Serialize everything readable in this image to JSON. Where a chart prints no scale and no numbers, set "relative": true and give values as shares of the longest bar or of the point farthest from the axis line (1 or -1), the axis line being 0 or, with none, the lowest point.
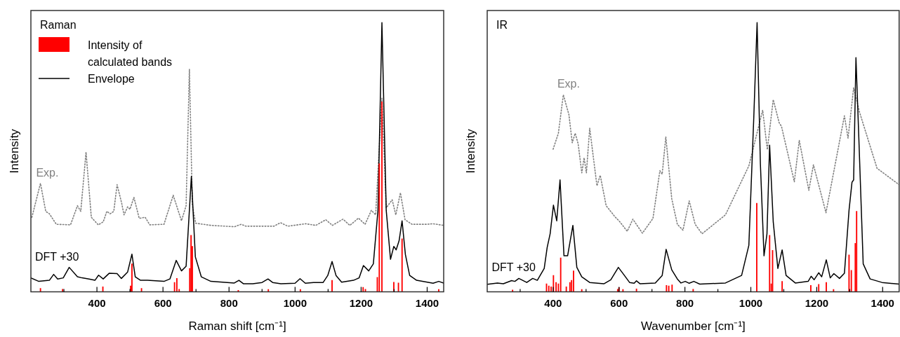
{
  "chart_data": [
    {
      "type": "line",
      "title": "Raman",
      "xlabel": "Raman shift [cm⁻¹]",
      "ylabel": "Intensity",
      "relative": true,
      "tick_labels": "x",
      "legend": "top left",
      "marker": "none",
      "xlim": [
        200,
        1450
      ],
      "xticks": [
        {
          "value": 300,
          "label": null
        },
        400,
        {
          "value": 500,
          "label": null
        },
        600,
        {
          "value": 700,
          "label": null
        },
        800,
        {
          "value": 900,
          "label": null
        },
        1000,
        {
          "value": 1100,
          "label": null
        },
        1200,
        {
          "value": 1300,
          "label": null
        },
        1400
      ],
      "annotations": [
        "Exp.",
        "DFT +30"
      ],
      "series": [
        {
          "type": "bar",
          "name": "Intensity of calculated bands",
          "color": "#ff0000",
          "x": [
            229,
            296,
            418,
            502,
            506,
            535,
            635,
            642,
            649,
            681,
            685,
            689,
            828,
            919,
            1016,
            1112,
            1206,
            1213,
            1249,
            1255,
            1263,
            1299,
            1313,
            1324,
            1435
          ],
          "values": [
            0.013,
            0.01,
            0.019,
            0.022,
            0.104,
            0.013,
            0.035,
            0.05,
            0.01,
            0.087,
            0.21,
            0.169,
            0.006,
            0.009,
            0.009,
            0.043,
            0.017,
            0.01,
            0.054,
            0.476,
            0.706,
            0.036,
            0.033,
            0.197,
            0.009
          ]
        },
        {
          "name": "Envelope",
          "color": "#000000",
          "line_style": "solid",
          "x": [
            200,
            224,
            256,
            269,
            281,
            298,
            316,
            341,
            355,
            376,
            394,
            405,
            419,
            437,
            461,
            474,
            493,
            506,
            516,
            532,
            553,
            603,
            621,
            640,
            656,
            670,
            686,
            698,
            716,
            745,
            816,
            830,
            844,
            872,
            900,
            918,
            932,
            957,
            1000,
            1015,
            1031,
            1056,
            1085,
            1099,
            1112,
            1124,
            1141,
            1177,
            1194,
            1207,
            1223,
            1237,
            1251,
            1263,
            1276,
            1289,
            1299,
            1306,
            1315,
            1324,
            1334,
            1347,
            1368,
            1418,
            1435,
            1450
          ],
          "values": [
            0.052,
            0.039,
            0.043,
            0.065,
            0.048,
            0.052,
            0.091,
            0.056,
            0.052,
            0.048,
            0.043,
            0.062,
            0.048,
            0.069,
            0.068,
            0.05,
            0.074,
            0.14,
            0.056,
            0.043,
            0.043,
            0.039,
            0.048,
            0.117,
            0.078,
            0.095,
            0.429,
            0.13,
            0.056,
            0.039,
            0.033,
            0.043,
            0.03,
            0.03,
            0.035,
            0.048,
            0.035,
            0.03,
            0.032,
            0.049,
            0.032,
            0.035,
            0.035,
            0.061,
            0.113,
            0.061,
            0.036,
            0.043,
            0.052,
            0.098,
            0.078,
            0.104,
            0.303,
            1.0,
            0.303,
            0.121,
            0.169,
            0.156,
            0.19,
            0.264,
            0.139,
            0.061,
            0.043,
            0.032,
            0.039,
            0.033
          ]
        },
        {
          "color": "#808080",
          "line_style": "dotted",
          "x": [
            203,
            229,
            245,
            256,
            277,
            320,
            341,
            351,
            367,
            383,
            404,
            419,
            430,
            440,
            451,
            461,
            475,
            482,
            493,
            500,
            512,
            528,
            546,
            560,
            603,
            631,
            656,
            670,
            680,
            689,
            699,
            745,
            816,
            837,
            851,
            936,
            956,
            978,
            1032,
            1063,
            1093,
            1113,
            1145,
            1166,
            1192,
            1212,
            1231,
            1244,
            1263,
            1276,
            1294,
            1305,
            1319,
            1333,
            1354,
            1397,
            1418,
            1450
          ],
          "values": [
            0.277,
            0.403,
            0.299,
            0.29,
            0.251,
            0.249,
            0.32,
            0.299,
            0.519,
            0.277,
            0.249,
            0.26,
            0.299,
            0.29,
            0.299,
            0.398,
            0.329,
            0.286,
            0.316,
            0.307,
            0.351,
            0.273,
            0.277,
            0.249,
            0.251,
            0.359,
            0.264,
            0.32,
            0.827,
            0.32,
            0.255,
            0.247,
            0.242,
            0.251,
            0.244,
            0.244,
            0.257,
            0.244,
            0.253,
            0.247,
            0.268,
            0.247,
            0.27,
            0.247,
            0.274,
            0.251,
            0.303,
            0.286,
            0.719,
            0.312,
            0.342,
            0.286,
            0.368,
            0.268,
            0.251,
            0.251,
            0.253,
            0.247
          ]
        }
      ]
    },
    {
      "type": "line",
      "title": "IR",
      "xlabel": "Wavenumber [cm⁻¹]",
      "ylabel": "Intensity",
      "relative": true,
      "tick_labels": "x",
      "marker": "none",
      "xlim": [
        200,
        1450
      ],
      "xticks": [
        {
          "value": 300,
          "label": null
        },
        400,
        {
          "value": 500,
          "label": null
        },
        600,
        {
          "value": 700,
          "label": null
        },
        800,
        {
          "value": 900,
          "label": null
        },
        1000,
        {
          "value": 1100,
          "label": null
        },
        1200,
        {
          "value": 1300,
          "label": null
        },
        1400
      ],
      "annotations": [
        "Exp.",
        "DFT +30"
      ],
      "series": [
        {
          "type": "bar",
          "color": "#ff0000",
          "x": [
            277,
            380,
            387,
            394,
            401,
            409,
            416,
            423,
            440,
            451,
            456,
            462,
            487,
            596,
            600,
            612,
            653,
            744,
            751,
            761,
            825,
            1018,
            1057,
            1062,
            1066,
            1095,
            1182,
            1206,
            1229,
            1251,
            1298,
            1305,
            1317,
            1321
          ],
          "values": [
            0.007,
            0.03,
            0.022,
            0.019,
            0.061,
            0.035,
            0.03,
            0.126,
            0.019,
            0.035,
            0.043,
            0.078,
            0.009,
            0.01,
            0.016,
            0.009,
            0.011,
            0.024,
            0.022,
            0.026,
            0.01,
            0.329,
            0.21,
            0.03,
            0.154,
            0.039,
            0.024,
            0.028,
            0.035,
            0.009,
            0.137,
            0.08,
            0.18,
            0.299
          ]
        },
        {
          "color": "#000000",
          "line_style": "solid",
          "x": [
            201,
            231,
            249,
            274,
            284,
            296,
            320,
            338,
            352,
            373,
            382,
            391,
            401,
            411,
            421,
            433,
            444,
            460,
            472,
            487,
            511,
            554,
            575,
            598,
            614,
            632,
            646,
            653,
            664,
            710,
            731,
            743,
            760,
            777,
            788,
            801,
            813,
            827,
            845,
            923,
            972,
            994,
            1009,
            1019,
            1029,
            1040,
            1049,
            1057,
            1068,
            1082,
            1095,
            1107,
            1135,
            1174,
            1183,
            1192,
            1206,
            1215,
            1229,
            1241,
            1252,
            1269,
            1284,
            1298,
            1307,
            1312,
            1319,
            1328,
            1341,
            1362,
            1398,
            1450
          ],
          "values": [
            0.028,
            0.033,
            0.03,
            0.042,
            0.039,
            0.05,
            0.035,
            0.05,
            0.043,
            0.087,
            0.165,
            0.216,
            0.322,
            0.264,
            0.416,
            0.134,
            0.134,
            0.247,
            0.091,
            0.056,
            0.035,
            0.03,
            0.045,
            0.091,
            0.065,
            0.035,
            0.032,
            0.041,
            0.03,
            0.033,
            0.061,
            0.158,
            0.082,
            0.048,
            0.033,
            0.039,
            0.032,
            0.039,
            0.029,
            0.033,
            0.061,
            0.173,
            0.649,
            1.0,
            0.476,
            0.134,
            0.216,
            0.545,
            0.26,
            0.087,
            0.156,
            0.061,
            0.033,
            0.039,
            0.058,
            0.045,
            0.071,
            0.056,
            0.119,
            0.052,
            0.068,
            0.05,
            0.069,
            0.303,
            0.407,
            0.416,
            0.87,
            0.563,
            0.104,
            0.048,
            0.035,
            0.029
          ]
        },
        {
          "color": "#808080",
          "line_style": "dotted",
          "x": [
            400,
            416,
            431,
            448,
            458,
            467,
            476,
            487,
            494,
            501,
            511,
            533,
            543,
            561,
            589,
            600,
            625,
            642,
            671,
            703,
            724,
            731,
            742,
            760,
            777,
            794,
            813,
            831,
            852,
            923,
            994,
            1036,
            1050,
            1068,
            1086,
            1093,
            1132,
            1147,
            1176,
            1190,
            1228,
            1284,
            1295,
            1312,
            1330,
            1383,
            1450
          ],
          "values": [
            0.53,
            0.589,
            0.732,
            0.658,
            0.554,
            0.589,
            0.55,
            0.442,
            0.498,
            0.442,
            0.608,
            0.394,
            0.433,
            0.32,
            0.277,
            0.264,
            0.225,
            0.27,
            0.218,
            0.273,
            0.45,
            0.437,
            0.576,
            0.346,
            0.251,
            0.229,
            0.338,
            0.251,
            0.216,
            0.286,
            0.468,
            0.675,
            0.528,
            0.714,
            0.628,
            0.615,
            0.409,
            0.563,
            0.377,
            0.472,
            0.294,
            0.654,
            0.571,
            0.758,
            0.667,
            0.459,
            0.398
          ]
        }
      ]
    }
  ]
}
